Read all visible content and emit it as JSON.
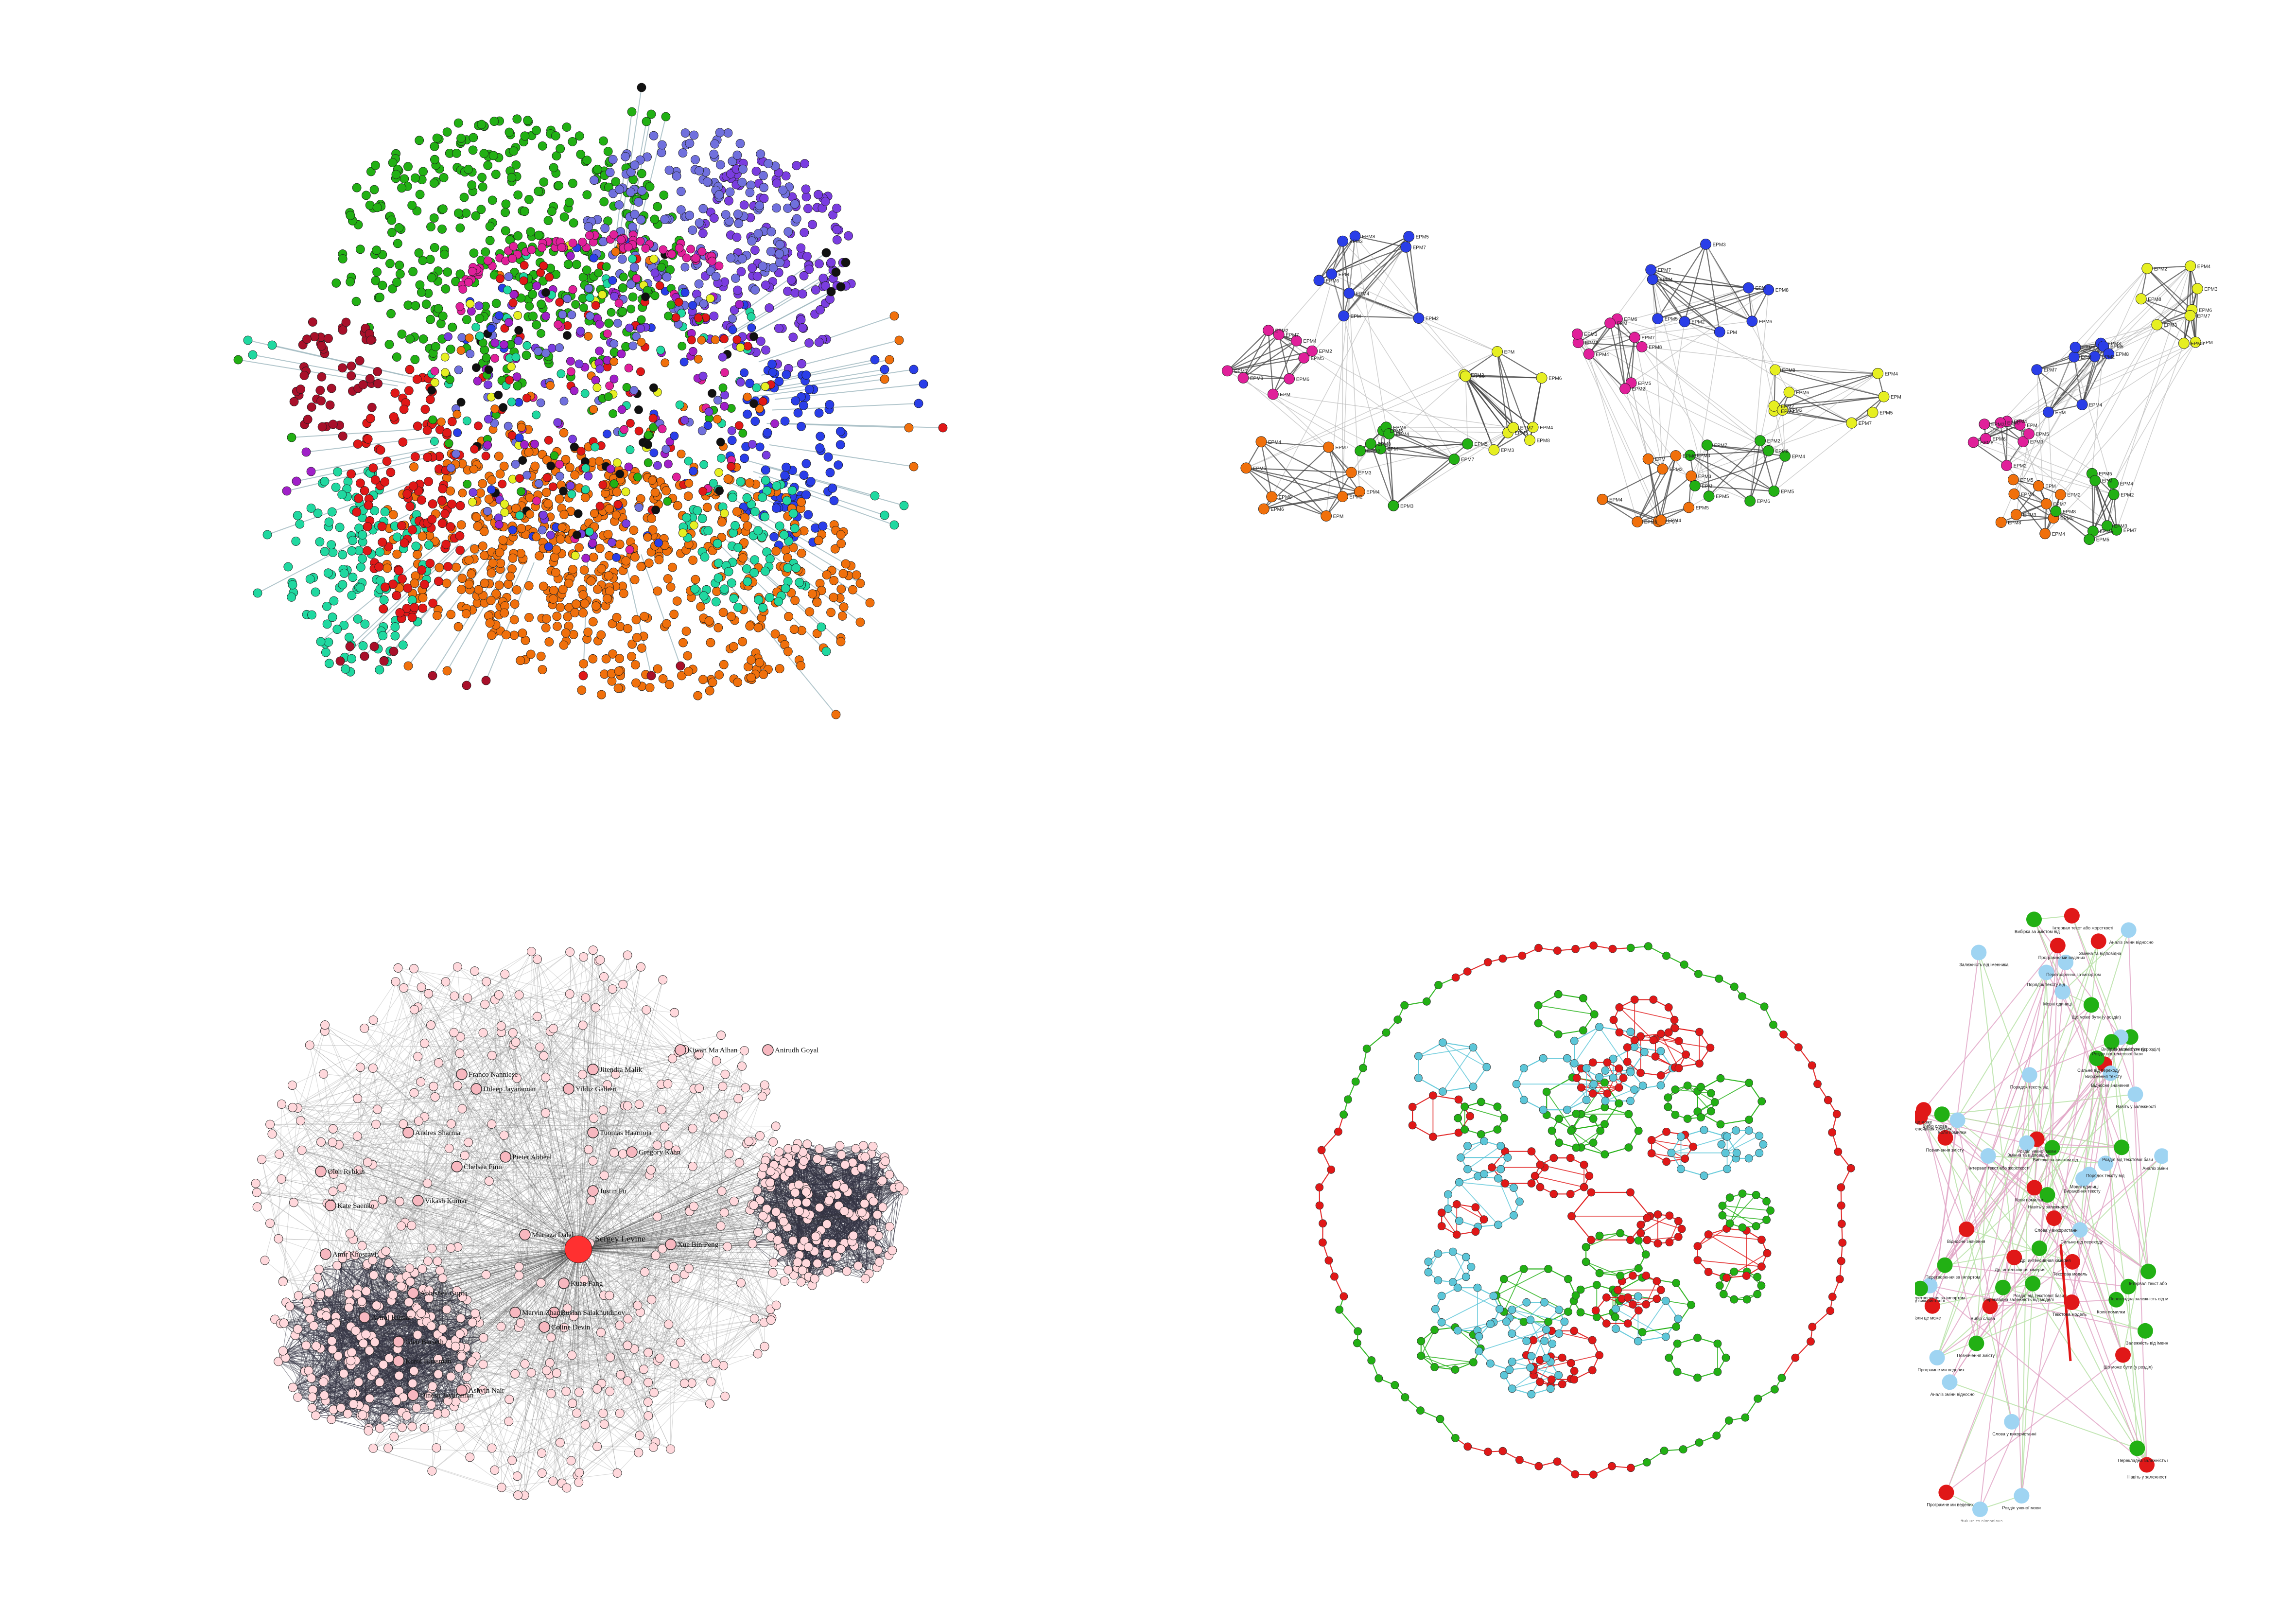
{
  "colors": {
    "green": "#22b014",
    "orange": "#f0700c",
    "violet": "#7a3de0",
    "blue": "#2a3ee8",
    "periwinkle": "#7070dd",
    "magenta": "#e0209a",
    "red": "#e01818",
    "crimson": "#a8102a",
    "teal": "#20d8a0",
    "yellow": "#e6ef22",
    "black": "#111111",
    "purple": "#a020c8",
    "pink": "#ffd8dc",
    "hub": "#ff3030",
    "cyan": "#5cc6d8",
    "lightblue": "#9fd4f2",
    "edge_gray": "#777777",
    "edge_light": "#c8c8c8"
  },
  "panel_tr": {
    "communities": [
      "blue",
      "magenta",
      "yellow",
      "orange",
      "green"
    ],
    "node_labels": [
      "EPM",
      "EPM2",
      "EPM3",
      "EPM4",
      "EPM5",
      "EPM6",
      "EPM7",
      "EPM8"
    ]
  },
  "panel_bl": {
    "hub_label": "Sergey Levine",
    "labels": [
      "Jitendra Malik",
      "Kiwan Ma Alhan",
      "Anirudh Goyal",
      "Franco Nanniese",
      "Dileep Jayaraman",
      "Yildiz Galbert",
      "Andres Sharma",
      "Chelsea Finn",
      "Oleh Rybkin",
      "Pieter Abbeel",
      "Gregory Kahn",
      "Tuomas Haarnoja",
      "Kate Saenko",
      "Amir Khosravi",
      "Xue Bin Peng",
      "Murtaza Dalal",
      "Vikash Kumar",
      "Ruslan Salakhutdinov",
      "Kuan Fang",
      "Abhishek Gupta",
      "Coline Devin",
      "Marvin Zhang",
      "Aviral Kumar",
      "Glen Berseth",
      "Justin Fu",
      "Karol Hausman",
      "Ashvin Nair",
      "Dinesh Jayaraman"
    ]
  },
  "panel_br": {
    "side_labels": [
      "Др. интенсивная хімерия",
      "Коли помилки",
      "Інтервал текст або жорсткості",
      "Що може бути (у розділ)",
      "Перекладна залежність від моделі",
      "Вибірка за змістом від",
      "Розділ від текстової бази",
      "Навіть у залежності",
      "Програмне ми ведених",
      "Змінна та відповідна",
      "Слова у використанні",
      "Перетворення за імпортом",
      "Аналіз зміни відносно",
      "Порядок тексту від",
      "Залежність від іменника",
      "Коли це може",
      "Розділ уявної мови",
      "Вираження тексту",
      "Сильне від переходу",
      "Позначення змісту",
      "Текстова модель",
      "Мовні одиниці",
      "Відносне значення",
      "Вибір слова"
    ]
  }
}
